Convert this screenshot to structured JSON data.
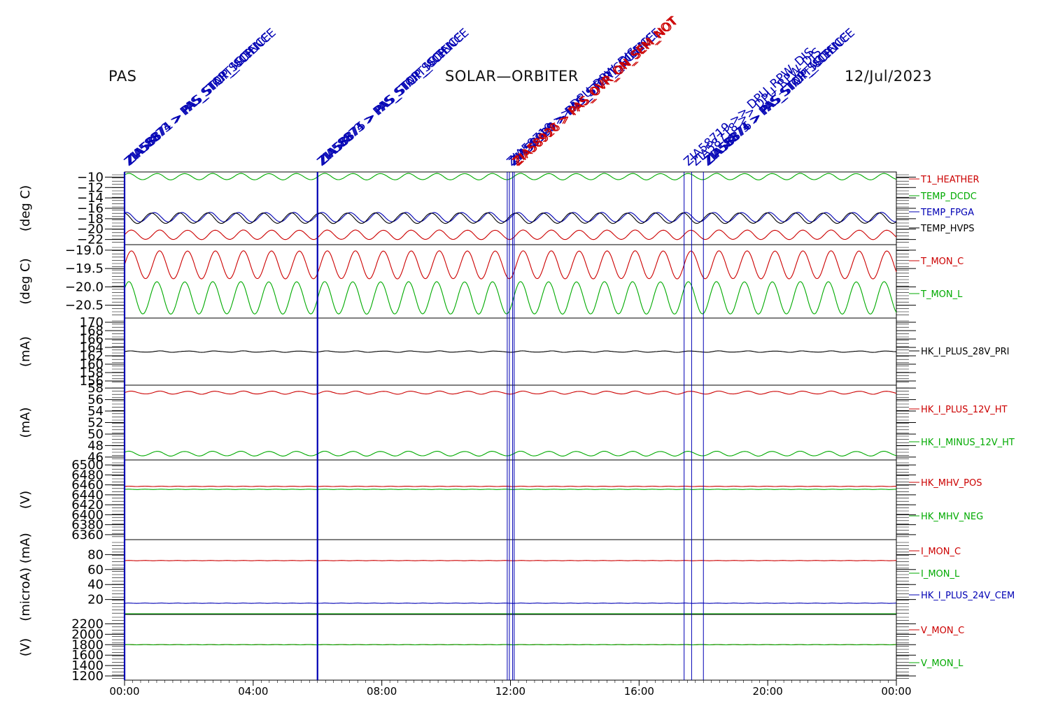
{
  "header": {
    "instrument": "PAS",
    "mission": "SOLAR—ORBITER",
    "date": "12/Jul/2023"
  },
  "colors": {
    "red": "#cc0000",
    "green": "#00aa00",
    "blue": "#0000b4",
    "black": "#000000"
  },
  "chart_data": {
    "type": "line",
    "x_axis": {
      "range_hours": [
        0,
        24
      ],
      "tick_labels": [
        "00:00",
        "04:00",
        "08:00",
        "12:00",
        "16:00",
        "20:00",
        "00:00"
      ]
    },
    "event_markers": [
      {
        "time": "00:00",
        "labels": [
          "ZIA58873 > PAS_STOP_SCIENCE",
          "ZIA58874 > PAS_START_SCIENCE",
          "ZIA58871 > PAS_STOP_MCP"
        ]
      },
      {
        "time": "06:00",
        "labels": [
          "ZIA58873 > PAS_STOP_SCIENCE",
          "ZIA58874 > PAS_START_SCIENCE",
          "ZIA58875 > PAS_STOP_MCP"
        ]
      },
      {
        "time": "11:54",
        "labels": [
          "ZIA58719 >> DPU_RPW_DIS"
        ]
      },
      {
        "time": "11:58",
        "labels": [
          "ZIA58920 > PAS_STOP_SCIENCE",
          "ZIA58999 > PAS_START_SCIENCE"
        ]
      },
      {
        "time": "12:04",
        "labels": [
          "ZIA58930 > PAS_OVR_ON_SEM_NOT"
        ]
      },
      {
        "time": "12:07",
        "labels": [
          "ZIA58926 > PAS_OVR_ON_SEM_NOT"
        ]
      },
      {
        "time": "17:24",
        "labels": [
          "ZIA58719 >> DPU_RPW_DIS"
        ]
      },
      {
        "time": "17:38",
        "labels": [
          "ZIA58718 >> DPU_RPW_DIS"
        ]
      },
      {
        "time": "18:00",
        "labels": [
          "ZIA58873 > PAS_STOP_SCIENCE",
          "ZIA58874 > PAS_START_SCIENCE",
          "ZIA58876 > PAS_STOP_MCP"
        ]
      }
    ],
    "panels": [
      {
        "ylabel": "(deg C)",
        "ylim": [
          -23,
          -9
        ],
        "tick_labels": [
          "-10",
          "-12",
          "-14",
          "-16",
          "-18",
          "-20",
          "-22"
        ],
        "series": [
          {
            "name": "T1_HEATHER",
            "color": "red",
            "mean": -21.1,
            "amp": 0.9,
            "period_hours": 0.87
          },
          {
            "name": "TEMP_DCDC",
            "color": "green",
            "mean": -9.9,
            "amp": 0.6,
            "period_hours": 0.87
          },
          {
            "name": "TEMP_FPGA",
            "color": "blue",
            "mean": -17.7,
            "amp": 0.9,
            "period_hours": 0.87
          },
          {
            "name": "TEMP_HVPS",
            "color": "black",
            "mean": -17.9,
            "amp": 1.0,
            "period_hours": 0.87
          }
        ]
      },
      {
        "ylabel": "(deg C)",
        "ylim": [
          -20.85,
          -18.85
        ],
        "tick_labels": [
          "-19.0",
          "-19.5",
          "-20.0",
          "-20.5"
        ],
        "series": [
          {
            "name": "T_MON_C",
            "color": "red",
            "mean": -19.4,
            "amp": 0.38,
            "period_hours": 0.87
          },
          {
            "name": "T_MON_L",
            "color": "green",
            "mean": -20.3,
            "amp": 0.44,
            "period_hours": 0.87
          }
        ]
      },
      {
        "ylabel": "(mA)",
        "ylim": [
          155,
          171
        ],
        "tick_labels": [
          "170",
          "168",
          "166",
          "164",
          "162",
          "160",
          "158",
          "156"
        ],
        "series": [
          {
            "name": "HK_I_PLUS_28V_PRI",
            "color": "black",
            "mean": 163.0,
            "amp": 0.15,
            "period_hours": 0.87
          }
        ]
      },
      {
        "ylabel": "(mA)",
        "ylim": [
          45.5,
          58.5
        ],
        "tick_labels": [
          "58",
          "56",
          "54",
          "52",
          "50",
          "48",
          "46"
        ],
        "series": [
          {
            "name": "HK_I_PLUS_12V_HT",
            "color": "red",
            "mean": 57.2,
            "amp": 0.25,
            "period_hours": 0.87
          },
          {
            "name": "HK_I_MINUS_12V_HT",
            "color": "green",
            "mean": 46.6,
            "amp": 0.4,
            "period_hours": 0.87
          }
        ]
      },
      {
        "ylabel": "(V)",
        "ylim": [
          6350,
          6510
        ],
        "tick_labels": [
          "6500",
          "6480",
          "6460",
          "6440",
          "6420",
          "6400",
          "6380",
          "6360"
        ],
        "series": [
          {
            "name": "HK_MHV_POS",
            "color": "red",
            "mean": 6457,
            "amp": 0,
            "period_hours": 0
          },
          {
            "name": "HK_MHV_NEG",
            "color": "green",
            "mean": 6451,
            "amp": 0,
            "period_hours": 0
          }
        ]
      },
      {
        "ylabel": "(microA) (mA)",
        "ylim": [
          0,
          100
        ],
        "tick_labels": [
          "80",
          "60",
          "40",
          "20"
        ],
        "series": [
          {
            "name": "I_MON_C",
            "color": "red",
            "mean": 72,
            "amp": 0,
            "period_hours": 0
          },
          {
            "name": "I_MON_L",
            "color": "green",
            "mean": 0,
            "amp": 0,
            "period_hours": 0
          },
          {
            "name": "HK_I_PLUS_24V_CEM",
            "color": "blue",
            "mean": 15,
            "amp": 0,
            "period_hours": 0
          }
        ]
      },
      {
        "ylabel": "(V)",
        "ylim": [
          1120,
          2380
        ],
        "tick_labels": [
          "2200",
          "2000",
          "1800",
          "1600",
          "1400",
          "1200"
        ],
        "series": [
          {
            "name": "V_MON_C",
            "color": "red",
            "mean": 1800,
            "amp": 0,
            "period_hours": 0
          },
          {
            "name": "V_MON_L",
            "color": "green",
            "mean": 1800,
            "amp": 0,
            "period_hours": 0
          }
        ]
      }
    ]
  }
}
